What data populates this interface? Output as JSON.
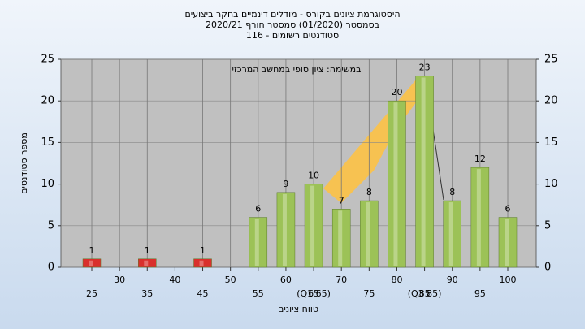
{
  "chart_data": {
    "type": "bar",
    "title": [
      "היסטוגרמת ציונים בקורס - מודלים דינמיים בחקר ביצועים",
      "בסמסטר (01/2020) סמסטר חורף 2020/21",
      "סטודנטים רשומים - 116"
    ],
    "annotation": "במשימה: ציון סופי במחשב המרכזי",
    "y_label": "מספר סטודנטים",
    "x_label": "טווח ציונים",
    "categories": [
      "25",
      "30",
      "35",
      "40",
      "45",
      "50",
      "55",
      "60",
      "65",
      "70",
      "75",
      "80",
      "85",
      "90",
      "95",
      "100"
    ],
    "values": [
      1,
      null,
      1,
      null,
      1,
      null,
      6,
      9,
      10,
      7,
      8,
      20,
      23,
      8,
      12,
      6
    ],
    "colors": [
      "#d9302c",
      null,
      "#d9302c",
      null,
      "#d9302c",
      null,
      "#9cc257",
      "#9cc257",
      "#9cc257",
      "#9cc257",
      "#9cc257",
      "#9cc257",
      "#9cc257",
      "#9cc257",
      "#9cc257",
      "#9cc257"
    ],
    "markers": [
      {
        "category": 8,
        "label": "(Q1 65)"
      },
      {
        "category": 12,
        "label": "(Q3 85)"
      }
    ],
    "ylim": [
      0,
      25
    ],
    "yticks": [
      0,
      5,
      10,
      15,
      20,
      25
    ],
    "y2lim": [
      0,
      25
    ],
    "y2ticks": [
      0,
      5,
      10,
      15,
      20,
      25
    ],
    "grid": true
  }
}
